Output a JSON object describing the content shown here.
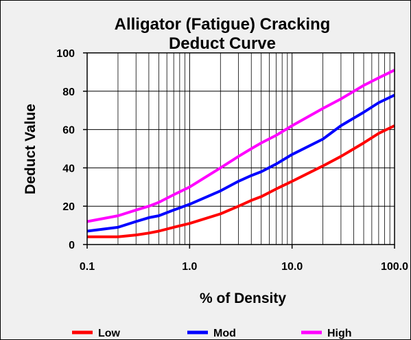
{
  "chart_data": {
    "type": "line",
    "title": "Alligator (Fatigue) Cracking",
    "subtitle": "Deduct Curve",
    "xlabel": "% of Density",
    "ylabel": "Deduct Value",
    "x_scale": "log",
    "xlim": [
      0.1,
      100
    ],
    "ylim": [
      0,
      100
    ],
    "x_ticks": [
      0.1,
      1,
      10,
      100
    ],
    "x_tick_labels": [
      "0.1",
      "1.0",
      "10.0",
      "100.0"
    ],
    "y_ticks": [
      0,
      20,
      40,
      60,
      80,
      100
    ],
    "y_tick_labels": [
      "0",
      "20",
      "40",
      "60",
      "80",
      "100"
    ],
    "grid": {
      "vertical_minor": true,
      "horizontal": true
    },
    "legend_position": "bottom",
    "series": [
      {
        "name": "Low",
        "color": "#ff0000",
        "x": [
          0.1,
          0.2,
          0.3,
          0.4,
          0.5,
          0.7,
          1,
          2,
          3,
          4,
          5,
          7,
          10,
          20,
          30,
          50,
          70,
          100
        ],
        "y": [
          4,
          4,
          5,
          6,
          7,
          9,
          11,
          16,
          20,
          23,
          25,
          29,
          33,
          41,
          46,
          53,
          58,
          62
        ]
      },
      {
        "name": "Mod",
        "color": "#0000ff",
        "x": [
          0.1,
          0.2,
          0.3,
          0.4,
          0.5,
          0.7,
          1,
          2,
          3,
          4,
          5,
          7,
          10,
          20,
          30,
          50,
          70,
          100
        ],
        "y": [
          7,
          9,
          12,
          14,
          15,
          18,
          21,
          28,
          33,
          36,
          38,
          42,
          47,
          55,
          62,
          69,
          74,
          78
        ]
      },
      {
        "name": "High",
        "color": "#ff00ff",
        "x": [
          0.1,
          0.2,
          0.3,
          0.4,
          0.5,
          0.7,
          1,
          2,
          3,
          4,
          5,
          7,
          10,
          20,
          30,
          50,
          70,
          100
        ],
        "y": [
          12,
          15,
          18,
          20,
          22,
          26,
          30,
          40,
          46,
          50,
          53,
          57,
          62,
          71,
          76,
          83,
          87,
          91
        ]
      }
    ]
  }
}
